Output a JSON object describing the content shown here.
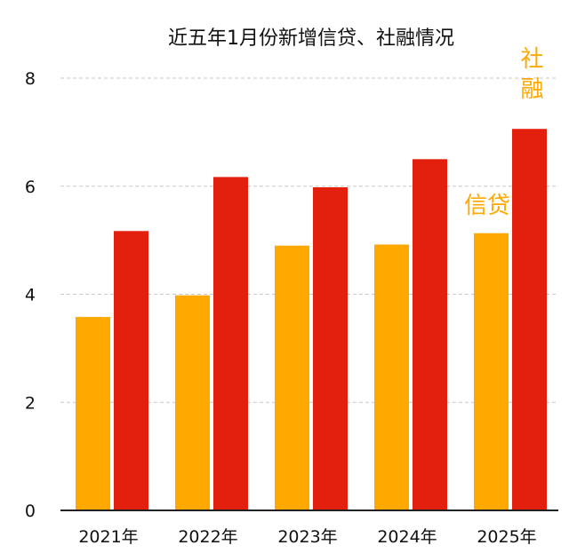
{
  "chart_data": {
    "type": "bar",
    "title": "近五年1月份新增信贷、社融情况",
    "categories": [
      "2021年",
      "2022年",
      "2023年",
      "2024年",
      "2025年"
    ],
    "series": [
      {
        "name": "信贷",
        "color": "#FFA800",
        "values": [
          3.58,
          3.98,
          4.9,
          4.92,
          5.13
        ]
      },
      {
        "name": "社融",
        "color": "#E3200E",
        "values": [
          5.17,
          6.17,
          5.98,
          6.5,
          7.06
        ]
      }
    ],
    "ylim": [
      0,
      8
    ],
    "yticks": [
      "0",
      "2",
      "4",
      "6",
      "8"
    ],
    "grid": true,
    "legend": "inline annotations near last category"
  }
}
